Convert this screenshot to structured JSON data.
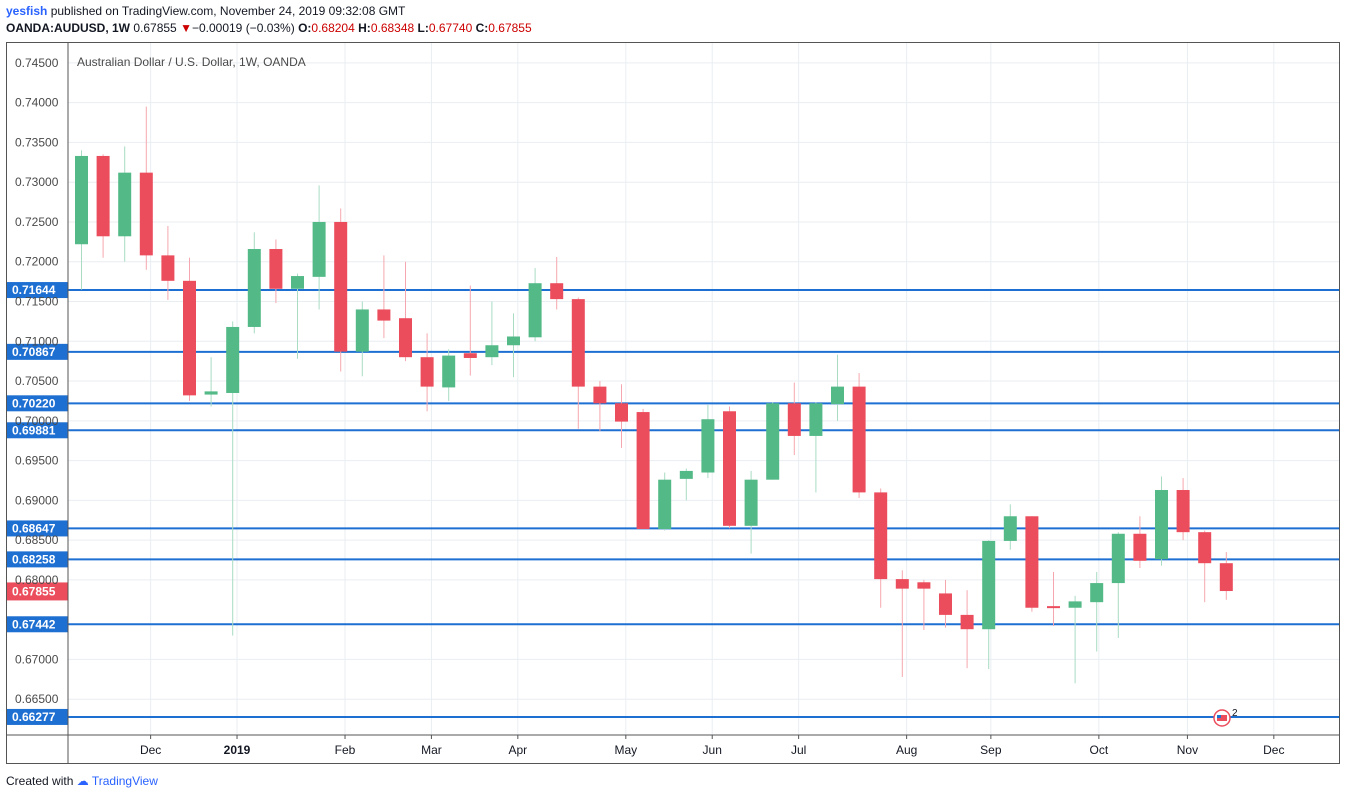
{
  "header": {
    "author": "yesfish",
    "published_text": "published on TradingView.com, November 24, 2019 09:32:08 GMT",
    "symbol": "OANDA:AUDUSD, 1W",
    "last": "0.67855",
    "change_arrow": "▼",
    "change": "−0.00019 (−0.03%)",
    "o_label": "O:",
    "o_value": "0.68204",
    "h_label": "H:",
    "h_value": "0.68348",
    "l_label": "L:",
    "l_value": "0.67740",
    "c_label": "C:",
    "c_value": "0.67855"
  },
  "footer": {
    "created_with": "Created with",
    "brand": "TradingView"
  },
  "colors": {
    "up": "#53b987",
    "down": "#eb4d5c",
    "level_line": "#1e6fd2",
    "grid": "#e9eef2",
    "axis_text": "#4a4a4a"
  },
  "chart_data": {
    "type": "candlestick",
    "title": "Australian Dollar / U.S. Dollar, 1W, OANDA",
    "ylim": [
      0.6605,
      0.7475
    ],
    "y_ticks": [
      "0.74500",
      "0.74000",
      "0.73500",
      "0.73000",
      "0.72500",
      "0.72000",
      "0.71500",
      "0.71000",
      "0.70500",
      "0.70000",
      "0.69500",
      "0.69000",
      "0.68500",
      "0.68000",
      "0.67000",
      "0.66500"
    ],
    "x_labels": [
      {
        "label": "Dec",
        "index": 3.2
      },
      {
        "label": "2019",
        "index": 7.2,
        "bold": true
      },
      {
        "label": "Feb",
        "index": 12.2
      },
      {
        "label": "Mar",
        "index": 16.2
      },
      {
        "label": "Apr",
        "index": 20.2
      },
      {
        "label": "May",
        "index": 25.2
      },
      {
        "label": "Jun",
        "index": 29.2
      },
      {
        "label": "Jul",
        "index": 33.2
      },
      {
        "label": "Aug",
        "index": 38.2
      },
      {
        "label": "Sep",
        "index": 42.1
      },
      {
        "label": "Oct",
        "index": 47.1
      },
      {
        "label": "Nov",
        "index": 51.2
      },
      {
        "label": "Dec",
        "index": 55.2
      }
    ],
    "horizontal_levels": [
      "0.71644",
      "0.70867",
      "0.70220",
      "0.69881",
      "0.68647",
      "0.68258",
      "0.67442",
      "0.66277"
    ],
    "last_price_label": "0.67855",
    "candles": [
      {
        "o": 0.7222,
        "h": 0.734,
        "l": 0.7165,
        "c": 0.7333
      },
      {
        "o": 0.7333,
        "h": 0.7335,
        "l": 0.7205,
        "c": 0.7232
      },
      {
        "o": 0.7232,
        "h": 0.7345,
        "l": 0.72,
        "c": 0.7312
      },
      {
        "o": 0.7312,
        "h": 0.7395,
        "l": 0.719,
        "c": 0.7208
      },
      {
        "o": 0.7208,
        "h": 0.7245,
        "l": 0.7152,
        "c": 0.7176
      },
      {
        "o": 0.7176,
        "h": 0.7205,
        "l": 0.7025,
        "c": 0.7032
      },
      {
        "o": 0.7033,
        "h": 0.708,
        "l": 0.7018,
        "c": 0.7037
      },
      {
        "o": 0.7035,
        "h": 0.7125,
        "l": 0.673,
        "c": 0.7118
      },
      {
        "o": 0.7118,
        "h": 0.7237,
        "l": 0.711,
        "c": 0.7216
      },
      {
        "o": 0.7216,
        "h": 0.7228,
        "l": 0.7148,
        "c": 0.7166
      },
      {
        "o": 0.7166,
        "h": 0.7185,
        "l": 0.7078,
        "c": 0.7182
      },
      {
        "o": 0.7181,
        "h": 0.7296,
        "l": 0.714,
        "c": 0.725
      },
      {
        "o": 0.725,
        "h": 0.7267,
        "l": 0.7062,
        "c": 0.7087
      },
      {
        "o": 0.7087,
        "h": 0.715,
        "l": 0.7056,
        "c": 0.714
      },
      {
        "o": 0.714,
        "h": 0.7208,
        "l": 0.7104,
        "c": 0.7126
      },
      {
        "o": 0.7129,
        "h": 0.72,
        "l": 0.7075,
        "c": 0.708
      },
      {
        "o": 0.708,
        "h": 0.711,
        "l": 0.7012,
        "c": 0.7043
      },
      {
        "o": 0.7042,
        "h": 0.709,
        "l": 0.7025,
        "c": 0.7082
      },
      {
        "o": 0.7085,
        "h": 0.717,
        "l": 0.7057,
        "c": 0.7079
      },
      {
        "o": 0.708,
        "h": 0.715,
        "l": 0.707,
        "c": 0.7095
      },
      {
        "o": 0.7095,
        "h": 0.7135,
        "l": 0.7055,
        "c": 0.7106
      },
      {
        "o": 0.7105,
        "h": 0.7192,
        "l": 0.71,
        "c": 0.7173
      },
      {
        "o": 0.7173,
        "h": 0.7206,
        "l": 0.714,
        "c": 0.7153
      },
      {
        "o": 0.7153,
        "h": 0.7155,
        "l": 0.699,
        "c": 0.7043
      },
      {
        "o": 0.7043,
        "h": 0.705,
        "l": 0.6987,
        "c": 0.7022
      },
      {
        "o": 0.7022,
        "h": 0.7046,
        "l": 0.6966,
        "c": 0.6999
      },
      {
        "o": 0.7011,
        "h": 0.7015,
        "l": 0.6865,
        "c": 0.6864
      },
      {
        "o": 0.6864,
        "h": 0.6935,
        "l": 0.6862,
        "c": 0.6926
      },
      {
        "o": 0.6927,
        "h": 0.694,
        "l": 0.69,
        "c": 0.6937
      },
      {
        "o": 0.6935,
        "h": 0.702,
        "l": 0.6928,
        "c": 0.7002
      },
      {
        "o": 0.7012,
        "h": 0.7018,
        "l": 0.6865,
        "c": 0.6868
      },
      {
        "o": 0.6868,
        "h": 0.6937,
        "l": 0.6833,
        "c": 0.6926
      },
      {
        "o": 0.6926,
        "h": 0.7023,
        "l": 0.6926,
        "c": 0.7022
      },
      {
        "o": 0.7022,
        "h": 0.7048,
        "l": 0.6957,
        "c": 0.6981
      },
      {
        "o": 0.6981,
        "h": 0.7023,
        "l": 0.691,
        "c": 0.7022
      },
      {
        "o": 0.7021,
        "h": 0.7083,
        "l": 0.7,
        "c": 0.7043
      },
      {
        "o": 0.7043,
        "h": 0.706,
        "l": 0.6903,
        "c": 0.691
      },
      {
        "o": 0.691,
        "h": 0.6915,
        "l": 0.6765,
        "c": 0.6801
      },
      {
        "o": 0.6801,
        "h": 0.6812,
        "l": 0.6678,
        "c": 0.6789
      },
      {
        "o": 0.6797,
        "h": 0.68,
        "l": 0.6737,
        "c": 0.6789
      },
      {
        "o": 0.6783,
        "h": 0.68,
        "l": 0.674,
        "c": 0.6756
      },
      {
        "o": 0.6756,
        "h": 0.6787,
        "l": 0.6689,
        "c": 0.6738
      },
      {
        "o": 0.6738,
        "h": 0.685,
        "l": 0.6688,
        "c": 0.6849
      },
      {
        "o": 0.6849,
        "h": 0.6895,
        "l": 0.6838,
        "c": 0.688
      },
      {
        "o": 0.688,
        "h": 0.688,
        "l": 0.676,
        "c": 0.6765
      },
      {
        "o": 0.6767,
        "h": 0.681,
        "l": 0.6742,
        "c": 0.6765
      },
      {
        "o": 0.6765,
        "h": 0.678,
        "l": 0.667,
        "c": 0.6773
      },
      {
        "o": 0.6772,
        "h": 0.681,
        "l": 0.671,
        "c": 0.6796
      },
      {
        "o": 0.6796,
        "h": 0.686,
        "l": 0.6727,
        "c": 0.6858
      },
      {
        "o": 0.6858,
        "h": 0.688,
        "l": 0.6815,
        "c": 0.6824
      },
      {
        "o": 0.6826,
        "h": 0.693,
        "l": 0.6818,
        "c": 0.6913
      },
      {
        "o": 0.6913,
        "h": 0.6928,
        "l": 0.685,
        "c": 0.686
      },
      {
        "o": 0.686,
        "h": 0.6862,
        "l": 0.6772,
        "c": 0.6821
      },
      {
        "o": 0.6821,
        "h": 0.6835,
        "l": 0.6775,
        "c": 0.6786
      }
    ]
  }
}
